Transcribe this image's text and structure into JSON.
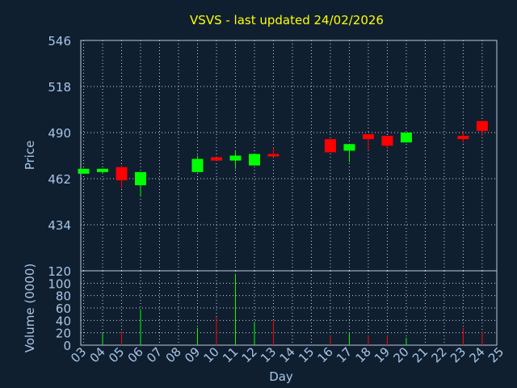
{
  "chart_data": [
    {
      "type": "candlestick",
      "title": "VSVS - last updated 24/02/2026",
      "ylabel": "Price",
      "ylim": [
        434,
        546
      ],
      "yticks": [
        434,
        462,
        490,
        518,
        546
      ],
      "grid": true,
      "colors": {
        "up": "#00ff00",
        "down": "#ff0000",
        "title": "#ffff00",
        "axis_text": "#a8c6e6"
      },
      "candles": [
        {
          "day": 3,
          "open": 465,
          "high": 468,
          "low": 465,
          "close": 468
        },
        {
          "day": 4,
          "open": 466,
          "high": 468,
          "low": 465,
          "close": 468
        },
        {
          "day": 5,
          "open": 469,
          "high": 470,
          "low": 456,
          "close": 461
        },
        {
          "day": 6,
          "open": 458,
          "high": 466,
          "low": 451,
          "close": 466
        },
        {
          "day": 9,
          "open": 466,
          "high": 476,
          "low": 466,
          "close": 474
        },
        {
          "day": 10,
          "open": 475,
          "high": 475,
          "low": 473,
          "close": 473
        },
        {
          "day": 11,
          "open": 473,
          "high": 479,
          "low": 468,
          "close": 476
        },
        {
          "day": 12,
          "open": 470,
          "high": 477,
          "low": 470,
          "close": 477
        },
        {
          "day": 13,
          "open": 477,
          "high": 481,
          "low": 475,
          "close": 476
        },
        {
          "day": 16,
          "open": 486,
          "high": 486,
          "low": 478,
          "close": 478
        },
        {
          "day": 17,
          "open": 479,
          "high": 483,
          "low": 472,
          "close": 483
        },
        {
          "day": 18,
          "open": 489,
          "high": 489,
          "low": 479,
          "close": 486
        },
        {
          "day": 19,
          "open": 488,
          "high": 488,
          "low": 480,
          "close": 482
        },
        {
          "day": 20,
          "open": 484,
          "high": 490,
          "low": 484,
          "close": 490
        },
        {
          "day": 23,
          "open": 488,
          "high": 491,
          "low": 484,
          "close": 486
        },
        {
          "day": 24,
          "open": 497,
          "high": 497,
          "low": 488,
          "close": 491
        }
      ]
    },
    {
      "type": "bar",
      "xlabel": "Day",
      "ylabel": "Volume (0000)",
      "ylim": [
        0,
        120
      ],
      "yticks": [
        0,
        20,
        40,
        60,
        80,
        100,
        120
      ],
      "categories": [
        "03",
        "04",
        "05",
        "06",
        "07",
        "08",
        "09",
        "10",
        "11",
        "12",
        "13",
        "14",
        "15",
        "16",
        "17",
        "18",
        "19",
        "20",
        "21",
        "22",
        "23",
        "24",
        "25"
      ],
      "bars": [
        {
          "day": 4,
          "value": 20,
          "color": "#00ff00"
        },
        {
          "day": 5,
          "value": 22,
          "color": "#ff0000"
        },
        {
          "day": 6,
          "value": 58,
          "color": "#00ff00"
        },
        {
          "day": 9,
          "value": 28,
          "color": "#00ff00"
        },
        {
          "day": 10,
          "value": 45,
          "color": "#ff0000"
        },
        {
          "day": 11,
          "value": 115,
          "color": "#00ff00"
        },
        {
          "day": 12,
          "value": 38,
          "color": "#00ff00"
        },
        {
          "day": 13,
          "value": 40,
          "color": "#ff0000"
        },
        {
          "day": 16,
          "value": 16,
          "color": "#ff0000"
        },
        {
          "day": 17,
          "value": 20,
          "color": "#00ff00"
        },
        {
          "day": 18,
          "value": 16,
          "color": "#ff0000"
        },
        {
          "day": 19,
          "value": 16,
          "color": "#ff0000"
        },
        {
          "day": 20,
          "value": 12,
          "color": "#00ff00"
        },
        {
          "day": 23,
          "value": 28,
          "color": "#ff0000"
        },
        {
          "day": 24,
          "value": 22,
          "color": "#ff0000"
        }
      ]
    }
  ]
}
